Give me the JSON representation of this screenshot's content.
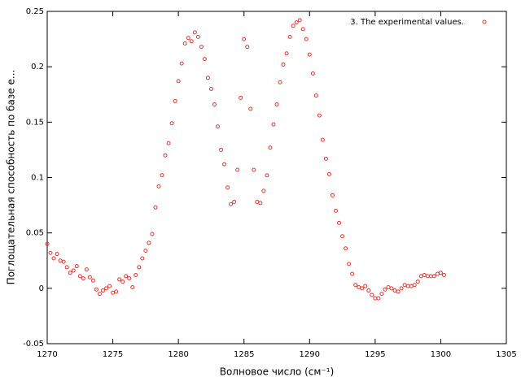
{
  "chart_data": {
    "type": "scatter",
    "xlabel": "Волновое число (см⁻¹)",
    "ylabel": "Поглощательная способность по базе е...",
    "xlim": [
      1270,
      1305
    ],
    "xticks": [
      1270,
      1275,
      1280,
      1285,
      1290,
      1295,
      1300,
      1305
    ],
    "ylim": [
      -0.05,
      0.25
    ],
    "yticks": [
      -0.05,
      0,
      0.05,
      0.1,
      0.15,
      0.2,
      0.25
    ],
    "legend": "upper right",
    "series": [
      {
        "name": "3.  The experimental values.",
        "color": "#e5352b",
        "x": [
          1270,
          1270.25,
          1270.5,
          1270.75,
          1271,
          1271.25,
          1271.5,
          1271.75,
          1272,
          1272.25,
          1272.5,
          1272.75,
          1273,
          1273.25,
          1273.5,
          1273.75,
          1274,
          1274.25,
          1274.5,
          1274.75,
          1275,
          1275.25,
          1275.5,
          1275.75,
          1276,
          1276.25,
          1276.5,
          1276.75,
          1277,
          1277.25,
          1277.5,
          1277.75,
          1278,
          1278.25,
          1278.5,
          1278.75,
          1279,
          1279.25,
          1279.5,
          1279.75,
          1280,
          1280.25,
          1280.5,
          1280.75,
          1281,
          1281.25,
          1281.5,
          1281.75,
          1282,
          1282.25,
          1282.5,
          1282.75,
          1283,
          1283.25,
          1283.5,
          1283.75,
          1284,
          1284.25,
          1284.5,
          1284.75,
          1285,
          1285.25,
          1285.5,
          1285.75,
          1286,
          1286.25,
          1286.5,
          1286.75,
          1287,
          1287.25,
          1287.5,
          1287.75,
          1288,
          1288.25,
          1288.5,
          1288.75,
          1289,
          1289.25,
          1289.5,
          1289.75,
          1290,
          1290.25,
          1290.5,
          1290.75,
          1291,
          1291.25,
          1291.5,
          1291.75,
          1292,
          1292.25,
          1292.5,
          1292.75,
          1293,
          1293.25,
          1293.5,
          1293.75,
          1294,
          1294.25,
          1294.5,
          1294.75,
          1295,
          1295.25,
          1295.5,
          1295.75,
          1296,
          1296.25,
          1296.5,
          1296.75,
          1297,
          1297.25,
          1297.5,
          1297.75,
          1298,
          1298.25,
          1298.5,
          1298.75,
          1299,
          1299.25,
          1299.5,
          1299.75,
          1300,
          1300.25
        ],
        "values": [
          0.04,
          0.032,
          0.027,
          0.031,
          0.025,
          0.024,
          0.019,
          0.014,
          0.016,
          0.02,
          0.011,
          0.009,
          0.017,
          0.01,
          0.007,
          -0.001,
          -0.005,
          -0.002,
          0.0,
          0.002,
          -0.004,
          -0.003,
          0.008,
          0.006,
          0.011,
          0.009,
          0.001,
          0.012,
          0.019,
          0.027,
          0.034,
          0.041,
          0.049,
          0.073,
          0.092,
          0.102,
          0.12,
          0.131,
          0.149,
          0.169,
          0.187,
          0.203,
          0.221,
          0.226,
          0.223,
          0.231,
          0.227,
          0.218,
          0.207,
          0.19,
          0.18,
          0.166,
          0.146,
          0.125,
          0.112,
          0.091,
          0.076,
          0.078,
          0.107,
          0.172,
          0.225,
          0.218,
          0.162,
          0.107,
          0.078,
          0.077,
          0.088,
          0.102,
          0.127,
          0.148,
          0.166,
          0.186,
          0.202,
          0.212,
          0.227,
          0.237,
          0.24,
          0.242,
          0.234,
          0.225,
          0.211,
          0.194,
          0.174,
          0.156,
          0.134,
          0.117,
          0.103,
          0.084,
          0.07,
          0.059,
          0.047,
          0.036,
          0.022,
          0.013,
          0.003,
          0.001,
          0.0,
          0.002,
          -0.002,
          -0.006,
          -0.009,
          -0.009,
          -0.005,
          -0.001,
          0.001,
          0.0,
          -0.002,
          -0.003,
          0.0,
          0.003,
          0.002,
          0.002,
          0.003,
          0.006,
          0.011,
          0.012,
          0.011,
          0.011,
          0.011,
          0.013,
          0.014,
          0.012
        ]
      }
    ]
  }
}
